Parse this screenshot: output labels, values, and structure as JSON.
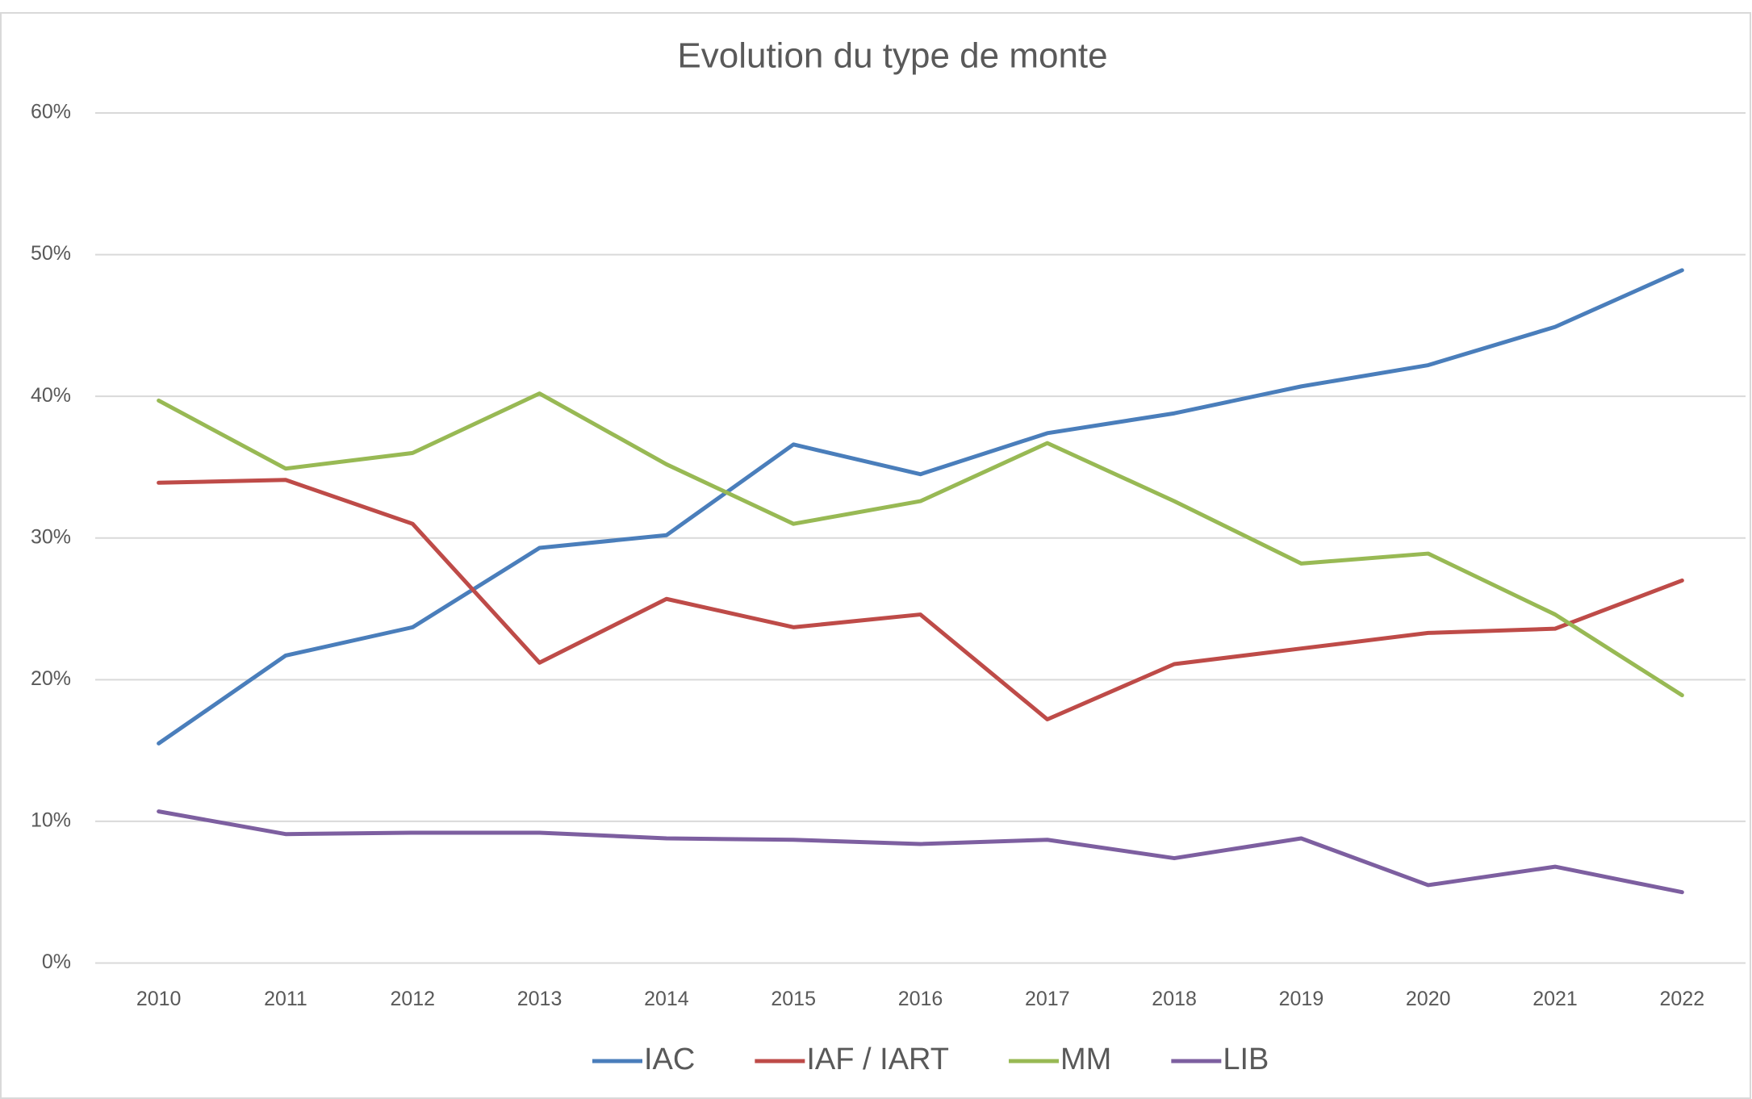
{
  "chart_data": {
    "type": "line",
    "title": "Evolution du type de monte",
    "categories": [
      "2010",
      "2011",
      "2012",
      "2013",
      "2014",
      "2015",
      "2016",
      "2017",
      "2018",
      "2019",
      "2020",
      "2021",
      "2022"
    ],
    "series": [
      {
        "name": "IAC",
        "color": "#4a7ebb",
        "values": [
          15.5,
          21.7,
          23.7,
          29.3,
          30.2,
          36.6,
          34.5,
          37.4,
          38.8,
          40.7,
          42.2,
          44.9,
          48.9
        ]
      },
      {
        "name": "IAF / IART",
        "color": "#be4b48",
        "values": [
          33.9,
          34.1,
          31.0,
          21.2,
          25.7,
          23.7,
          24.6,
          17.2,
          21.1,
          22.2,
          23.3,
          23.6,
          27.0
        ]
      },
      {
        "name": "MM",
        "color": "#98b954",
        "values": [
          39.7,
          34.9,
          36.0,
          40.2,
          35.2,
          31.0,
          32.6,
          36.7,
          32.6,
          28.2,
          28.9,
          24.6,
          18.9
        ]
      },
      {
        "name": "LIB",
        "color": "#7d5fa0",
        "values": [
          10.7,
          9.1,
          9.2,
          9.2,
          8.8,
          8.7,
          8.4,
          8.7,
          7.4,
          8.8,
          5.5,
          6.8,
          5.0
        ]
      }
    ],
    "ylim": [
      0,
      60
    ],
    "yticks": [
      {
        "value": 0,
        "label": "0%"
      },
      {
        "value": 10,
        "label": "10%"
      },
      {
        "value": 20,
        "label": "20%"
      },
      {
        "value": 30,
        "label": "30%"
      },
      {
        "value": 40,
        "label": "40%"
      },
      {
        "value": 50,
        "label": "50%"
      },
      {
        "value": 60,
        "label": "60%"
      }
    ],
    "grid": true,
    "legend": "bottom"
  }
}
